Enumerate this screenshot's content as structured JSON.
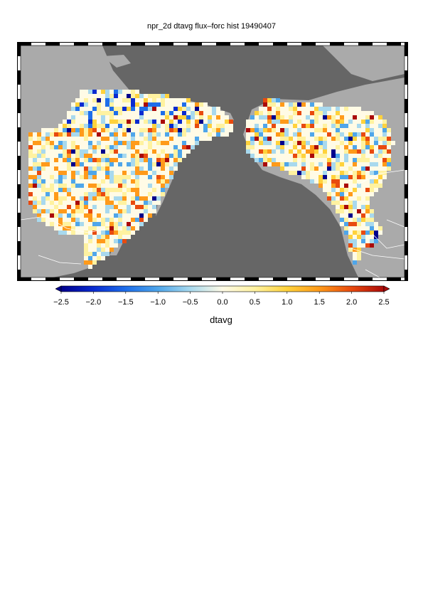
{
  "title": "npr_2d dtavg flux–forc hist 19490407",
  "colorbar": {
    "label": "dtavg",
    "ticks": [
      "−2.5",
      "−2.0",
      "−1.5",
      "−1.0",
      "−0.5",
      "0.0",
      "0.5",
      "1.0",
      "1.5",
      "2.0",
      "2.5"
    ],
    "min": -2.5,
    "max": 2.5,
    "colors": [
      "#00008c",
      "#0a2bd0",
      "#1e6eea",
      "#4fa6ea",
      "#a8d9ee",
      "#fffbe6",
      "#fff2a0",
      "#ffd23c",
      "#ff9a1a",
      "#e84a0f",
      "#aa0a0a"
    ]
  },
  "map": {
    "ocean_color": "#666666",
    "land_color": "#aaaaaa",
    "border_color": "#ffffff",
    "frame_color": "#000000"
  }
}
